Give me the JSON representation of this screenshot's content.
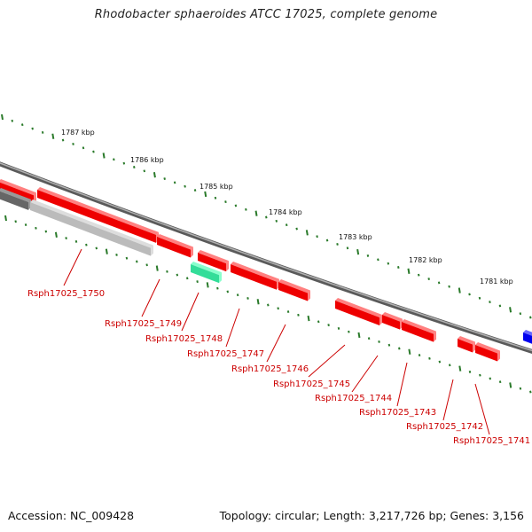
{
  "title": "Rhodobacter sphaeroides ATCC 17025, complete genome",
  "accession": "Accession: NC_009428",
  "topology": "Topology: circular; Length: 3,217,726 bp; Genes: 3,156",
  "colors": {
    "forward_gene": "#ee0000",
    "reverse_gene": "#ee0000",
    "highlight_gene": "#33dd99",
    "pseudo_gene": "#aaaaaa",
    "partial_gene": "#0000ee",
    "backbone": "#777777",
    "tick": "#2a7a2a",
    "label": "#cc0000"
  },
  "scale_labels": [
    "1787 kbp",
    "1786 kbp",
    "1785 kbp",
    "1784 kbp",
    "1783 kbp",
    "1782 kbp",
    "1781 kbp"
  ],
  "gene_labels": [
    "Rsph17025_1750",
    "Rsph17025_1749",
    "Rsph17025_1748",
    "Rsph17025_1747",
    "Rsph17025_1746",
    "Rsph17025_1745",
    "Rsph17025_1744",
    "Rsph17025_1743",
    "Rsph17025_1742",
    "Rsph17025_1741"
  ]
}
